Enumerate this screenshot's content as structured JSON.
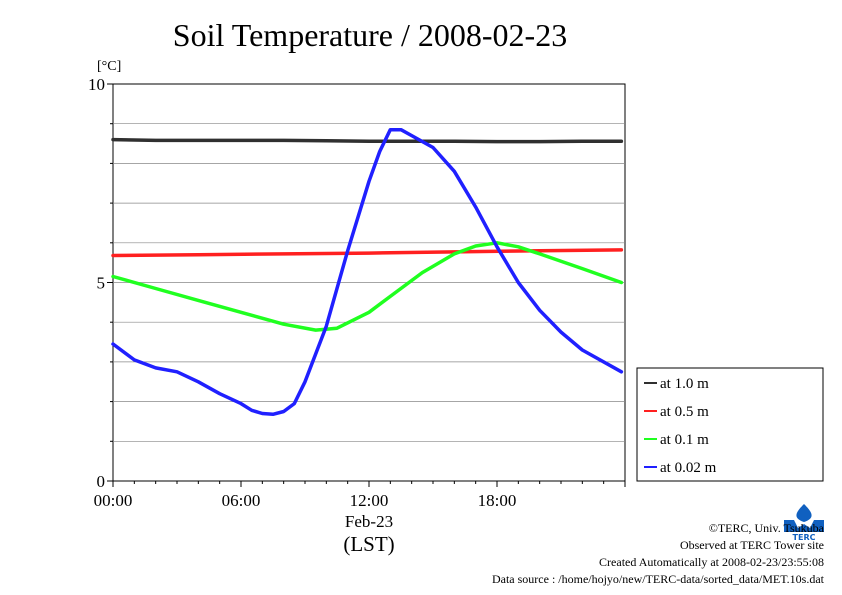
{
  "chart_data": {
    "type": "line",
    "title": "Soil Temperature / 2008-02-23",
    "ylabel": "[°C]",
    "xlabel": "(LST)",
    "x_date_label": "Feb-23",
    "ylim": [
      0,
      10
    ],
    "yticks": [
      "0",
      "5",
      "10"
    ],
    "xlim": [
      "00:00",
      "24:00"
    ],
    "xticks": [
      "00:00",
      "06:00",
      "12:00",
      "18:00"
    ],
    "grid": true,
    "legend_position": "right-bottom",
    "series": [
      {
        "name": "at 1.0 m",
        "color": "#303030",
        "x": [
          "00:00",
          "02:00",
          "04:00",
          "06:00",
          "08:00",
          "10:00",
          "12:00",
          "14:00",
          "16:00",
          "18:00",
          "20:00",
          "22:00",
          "23:50"
        ],
        "y": [
          8.6,
          8.58,
          8.58,
          8.58,
          8.58,
          8.57,
          8.56,
          8.56,
          8.56,
          8.55,
          8.55,
          8.56,
          8.56
        ]
      },
      {
        "name": "at 0.5 m",
        "color": "#ff2020",
        "x": [
          "00:00",
          "04:00",
          "08:00",
          "12:00",
          "16:00",
          "20:00",
          "23:50"
        ],
        "y": [
          5.68,
          5.7,
          5.72,
          5.74,
          5.77,
          5.8,
          5.82
        ]
      },
      {
        "name": "at 0.1 m",
        "color": "#20ff20",
        "x": [
          "00:00",
          "02:00",
          "04:00",
          "06:00",
          "08:00",
          "09:30",
          "10:30",
          "12:00",
          "13:00",
          "14:30",
          "16:00",
          "17:00",
          "18:00",
          "19:00",
          "20:00",
          "22:00",
          "23:50"
        ],
        "y": [
          5.15,
          4.85,
          4.55,
          4.25,
          3.95,
          3.8,
          3.85,
          4.25,
          4.65,
          5.25,
          5.72,
          5.92,
          6.0,
          5.9,
          5.72,
          5.35,
          5.0
        ]
      },
      {
        "name": "at 0.02 m",
        "color": "#2020ff",
        "x": [
          "00:00",
          "01:00",
          "02:00",
          "03:00",
          "04:00",
          "05:00",
          "06:00",
          "06:30",
          "07:00",
          "07:30",
          "08:00",
          "08:30",
          "09:00",
          "10:00",
          "11:00",
          "12:00",
          "12:30",
          "13:00",
          "13:30",
          "14:00",
          "15:00",
          "16:00",
          "17:00",
          "18:00",
          "19:00",
          "20:00",
          "21:00",
          "22:00",
          "23:50"
        ],
        "y": [
          3.45,
          3.05,
          2.85,
          2.75,
          2.5,
          2.2,
          1.95,
          1.78,
          1.7,
          1.68,
          1.75,
          1.95,
          2.5,
          3.9,
          5.8,
          7.55,
          8.3,
          8.85,
          8.85,
          8.7,
          8.4,
          7.8,
          6.9,
          5.9,
          5.0,
          4.3,
          3.75,
          3.3,
          2.75
        ]
      }
    ]
  },
  "footer": {
    "copyright": "©TERC, Univ. Tsukuba",
    "observed": "Observed at TERC Tower site",
    "created": "Created Automatically at 2008-02-23/23:55:08",
    "source": "Data source : /home/hojyo/new/TERC-data/sorted_data/MET.10s.dat"
  },
  "logo": {
    "icon": "terc-logo-icon",
    "text": "TERC",
    "color": "#1060c0"
  }
}
